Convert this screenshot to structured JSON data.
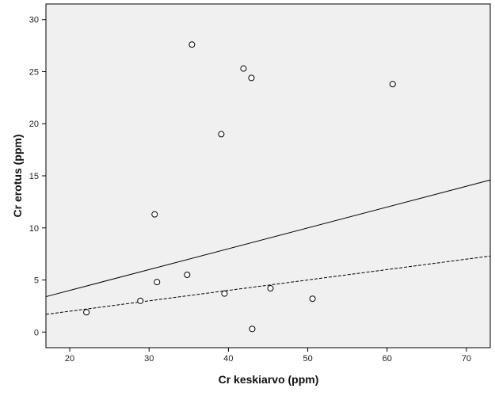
{
  "chart_data": {
    "type": "scatter",
    "xlabel": "Cr keskiarvo (ppm)",
    "ylabel": "Cr erotus (ppm)",
    "xlim": [
      17,
      73
    ],
    "ylim": [
      -1.5,
      31.5
    ],
    "xticks": [
      20,
      30,
      40,
      50,
      60,
      70
    ],
    "yticks": [
      0,
      5,
      10,
      15,
      20,
      25,
      30
    ],
    "grid": false,
    "colors": {
      "plot_background": "#f0f0f0",
      "frame": "#000000",
      "marker_stroke": "#000000",
      "marker_fill": "#ffffff"
    },
    "points": [
      {
        "x": 22.1,
        "y": 1.9
      },
      {
        "x": 28.9,
        "y": 3.0
      },
      {
        "x": 30.7,
        "y": 11.3
      },
      {
        "x": 31.0,
        "y": 4.8
      },
      {
        "x": 34.8,
        "y": 5.5
      },
      {
        "x": 35.4,
        "y": 27.6
      },
      {
        "x": 39.1,
        "y": 19.0
      },
      {
        "x": 39.5,
        "y": 3.7
      },
      {
        "x": 41.9,
        "y": 25.3
      },
      {
        "x": 42.9,
        "y": 24.4
      },
      {
        "x": 43.0,
        "y": 0.3
      },
      {
        "x": 45.3,
        "y": 4.2
      },
      {
        "x": 50.6,
        "y": 3.2
      },
      {
        "x": 60.7,
        "y": 23.8
      }
    ],
    "lines": [
      {
        "style": "solid",
        "x": [
          17,
          73
        ],
        "y": [
          3.4,
          14.6
        ]
      },
      {
        "style": "dashed",
        "x": [
          17,
          73
        ],
        "y": [
          1.7,
          7.3
        ]
      }
    ]
  }
}
